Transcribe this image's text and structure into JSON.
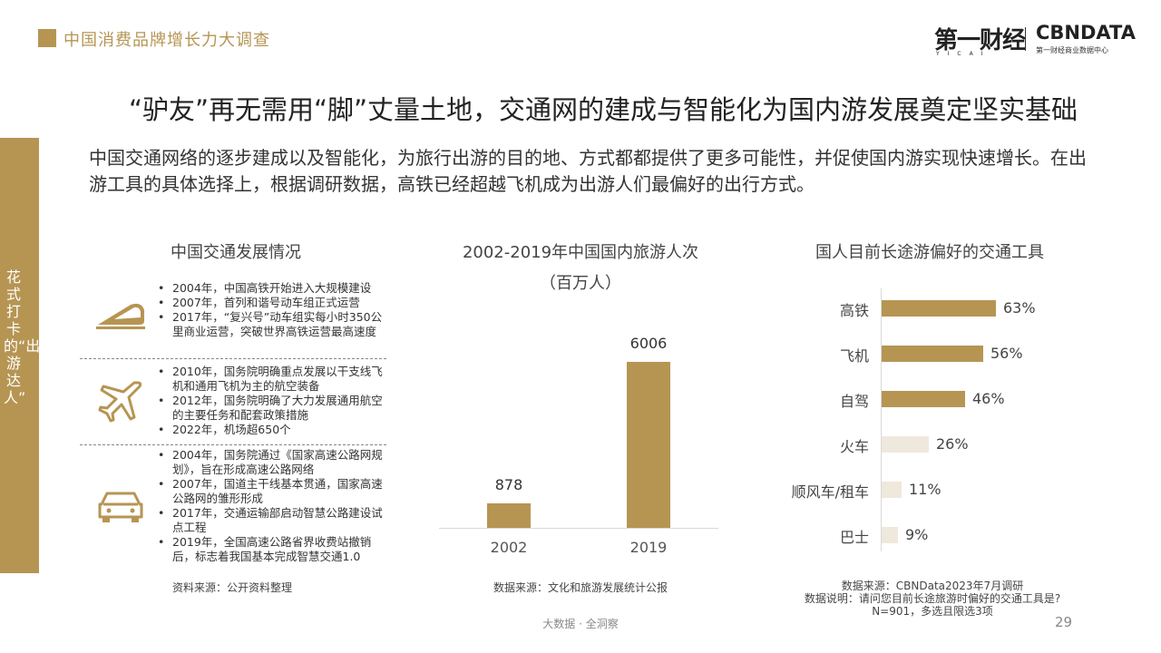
{
  "header": {
    "title": "中国消费品牌增长力大调查"
  },
  "logo": {
    "yicai": "第一财经",
    "yicai_sub": "YICAI",
    "cbn": "CBNDATA",
    "cbn_sub": "第一财经商业数据中心"
  },
  "side_label": "花式打卡的“出游达人”",
  "title": "“驴友”再无需用“脚”丈量土地，交通网的建成与智能化为国内游发展奠定坚实基础",
  "intro": "中国交通网络的逐步建成以及智能化，为旅行出游的目的地、方式都都提供了更多可能性，并促使国内游实现快速增长。在出游工具的具体选择上，根据调研数据，高铁已经超越飞机成为出游人们最偏好的出行方式。",
  "left_panel": {
    "title": "中国交通发展情况",
    "groups": [
      {
        "icon": "high-speed-train-icon",
        "items": [
          "2004年，中国高铁开始进入大规模建设",
          "2007年，首列和谐号动车组正式运营",
          "2017年，“复兴号”动车组实每小时350公里商业运营，突破世界高铁运营最高速度"
        ]
      },
      {
        "icon": "airplane-icon",
        "items": [
          "2010年，国务院明确重点发展以干支线飞机和通用飞机为主的航空装备",
          "2012年，国务院明确了大力发展通用航空的主要任务和配套政策措施",
          "2022年，机场超650个"
        ]
      },
      {
        "icon": "car-icon",
        "items": [
          "2004年，国务院通过《国家高速公路网规划》，旨在形成高速公路网络",
          "2007年，国道主干线基本贯通，国家高速公路网的雏形形成",
          "2017年，交通运输部启动智慧公路建设试点工程",
          "2019年，全国高速公路省界收费站撤销后，标志着我国基本完成智慧交通1.0"
        ]
      }
    ],
    "source": "资料来源：公开资料整理"
  },
  "middle_panel": {
    "title_line1": "2002-2019年中国国内旅游人次",
    "title_line2": "（百万人）",
    "source": "数据来源：文化和旅游发展统计公报"
  },
  "right_panel": {
    "title": "国人目前长途游偏好的交通工具",
    "source_lines": [
      "数据来源：CBNData2023年7月调研",
      "数据说明：请问您目前长途旅游时偏好的交通工具是?",
      "N=901，多选且限选3项"
    ]
  },
  "chart_data": [
    {
      "type": "bar",
      "title": "2002-2019年中国国内旅游人次",
      "subtitle": "（百万人）",
      "categories": [
        "2002",
        "2019"
      ],
      "values": [
        878,
        6006
      ],
      "value_labels": [
        "878",
        "6006"
      ],
      "ylim": [
        0,
        6500
      ],
      "grid": false,
      "colors": [
        "#b69553"
      ]
    },
    {
      "type": "bar",
      "orientation": "horizontal",
      "title": "国人目前长途游偏好的交通工具",
      "categories": [
        "高铁",
        "飞机",
        "自驾",
        "火车",
        "顺风车/租车",
        "巴士"
      ],
      "values": [
        63,
        56,
        46,
        26,
        11,
        9
      ],
      "value_labels": [
        "63%",
        "56%",
        "46%",
        "26%",
        "11%",
        "9%"
      ],
      "unit": "%",
      "xlim": [
        0,
        100
      ],
      "colors": [
        "#b69553",
        "#b69553",
        "#b69553",
        "#efe8dc",
        "#efe8dc",
        "#efe8dc"
      ]
    }
  ],
  "footer": {
    "text": "大数据 · 全洞察",
    "page": "29"
  }
}
